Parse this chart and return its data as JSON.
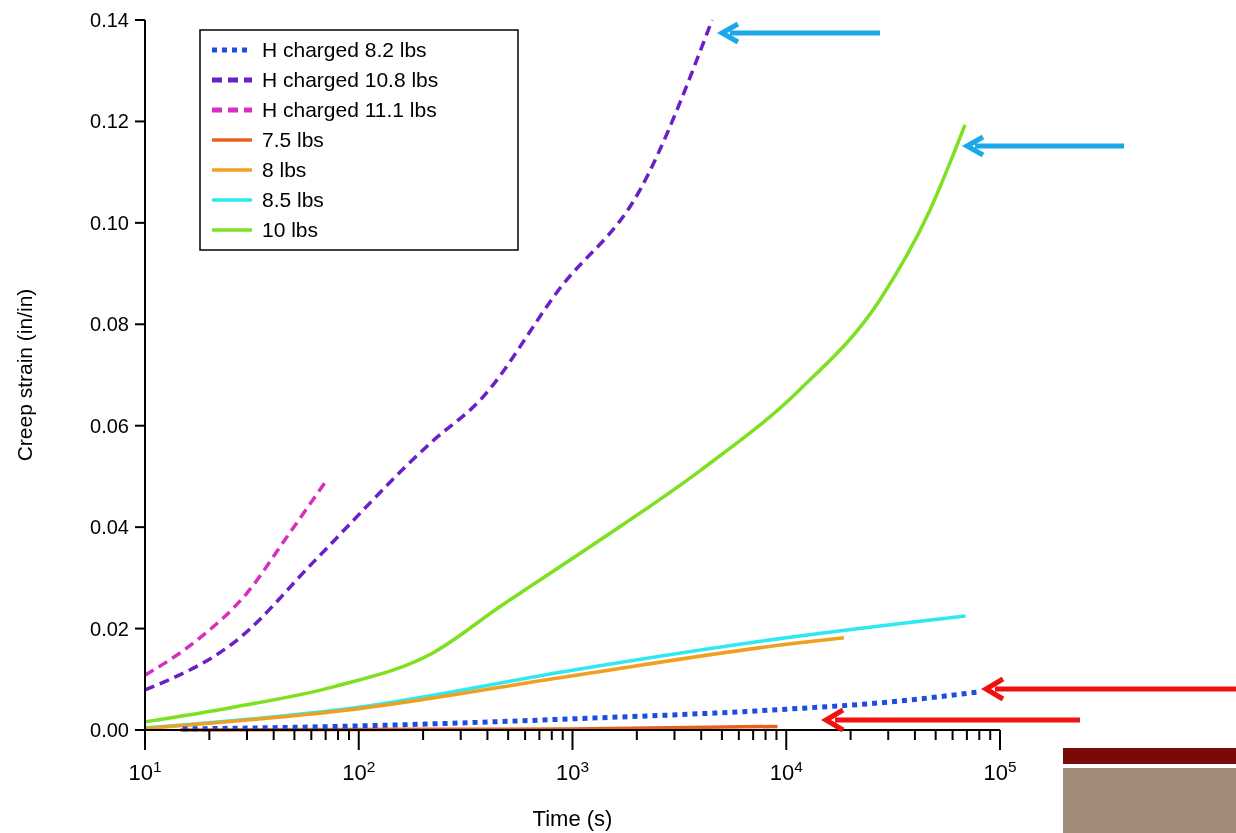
{
  "chart_data": {
    "type": "line",
    "xlabel": "Time (s)",
    "ylabel": "Creep strain (in/in)",
    "log": "x",
    "xlim": [
      10,
      100000
    ],
    "ylim": [
      0,
      0.14
    ],
    "xticks": [
      {
        "value": 10,
        "label": "10$^{1}$"
      },
      {
        "value": 20,
        "label": null
      },
      {
        "value": 30,
        "label": null
      },
      {
        "value": 40,
        "label": null
      },
      {
        "value": 50,
        "label": null
      },
      {
        "value": 60,
        "label": null
      },
      {
        "value": 70,
        "label": null
      },
      {
        "value": 80,
        "label": null
      },
      {
        "value": 90,
        "label": null
      },
      {
        "value": 100,
        "label": "10$^{2}$"
      },
      {
        "value": 200,
        "label": null
      },
      {
        "value": 300,
        "label": null
      },
      {
        "value": 400,
        "label": null
      },
      {
        "value": 500,
        "label": null
      },
      {
        "value": 600,
        "label": null
      },
      {
        "value": 700,
        "label": null
      },
      {
        "value": 800,
        "label": null
      },
      {
        "value": 900,
        "label": null
      },
      {
        "value": 1000,
        "label": "10$^{3}$"
      },
      {
        "value": 2000,
        "label": null
      },
      {
        "value": 3000,
        "label": null
      },
      {
        "value": 4000,
        "label": null
      },
      {
        "value": 5000,
        "label": null
      },
      {
        "value": 6000,
        "label": null
      },
      {
        "value": 7000,
        "label": null
      },
      {
        "value": 8000,
        "label": null
      },
      {
        "value": 9000,
        "label": null
      },
      {
        "value": 10000,
        "label": "10$^{4}$"
      },
      {
        "value": 20000,
        "label": null
      },
      {
        "value": 30000,
        "label": null
      },
      {
        "value": 40000,
        "label": null
      },
      {
        "value": 50000,
        "label": null
      },
      {
        "value": 60000,
        "label": null
      },
      {
        "value": 70000,
        "label": null
      },
      {
        "value": 80000,
        "label": null
      },
      {
        "value": 90000,
        "label": null
      },
      {
        "value": 100000,
        "label": "10$^{5}$"
      }
    ],
    "yticks": [
      {
        "value": 0,
        "label": "0.00"
      },
      {
        "value": 0.02,
        "label": "0.02"
      },
      {
        "value": 0.04,
        "label": "0.04"
      },
      {
        "value": 0.06,
        "label": "0.06"
      },
      {
        "value": 0.08,
        "label": "0.08"
      },
      {
        "value": 0.1,
        "label": "0.10"
      },
      {
        "value": 0.12,
        "label": "0.12"
      },
      {
        "value": 0.14,
        "label": "0.14"
      }
    ],
    "grid": false,
    "legend": "top left",
    "marker": "none",
    "series": [
      {
        "name": "H charged 8.2 lbs",
        "color": "#1a4de0",
        "line_style": "dotted",
        "x": [
          15,
          100,
          1000,
          10000,
          30000,
          79400
        ],
        "values": [
          0.0002,
          0.0008,
          0.0022,
          0.0041,
          0.0055,
          0.0075
        ]
      },
      {
        "name": "H charged 10.8 lbs",
        "color": "#6a1fc9",
        "line_style": "dashed",
        "x": [
          10,
          28,
          61,
          222,
          369,
          870,
          2070,
          4500
        ],
        "values": [
          0.0079,
          0.0183,
          0.033,
          0.057,
          0.065,
          0.087,
          0.1065,
          0.14
        ]
      },
      {
        "name": "H charged 11.1 lbs",
        "color": "#d62fc0",
        "line_style": "dashed",
        "x": [
          10,
          17.5,
          30,
          46,
          70
        ],
        "values": [
          0.0108,
          0.0177,
          0.027,
          0.038,
          0.049
        ]
      },
      {
        "name": "7.5 lbs",
        "color": "#e8601c",
        "line_style": "solid",
        "x": [
          14.6,
          100,
          1000,
          9100
        ],
        "values": [
          0,
          0.0001,
          0.0002,
          0.0007
        ]
      },
      {
        "name": "8 lbs",
        "color": "#f0a020",
        "line_style": "solid",
        "x": [
          10,
          100,
          1000,
          10000,
          18600
        ],
        "values": [
          0.0003,
          0.0042,
          0.0107,
          0.0169,
          0.0182
        ]
      },
      {
        "name": "8.5 lbs",
        "color": "#30e8f0",
        "line_style": "solid",
        "x": [
          10,
          100,
          1000,
          10000,
          69000
        ],
        "values": [
          0.0004,
          0.0045,
          0.0118,
          0.0182,
          0.0225
        ]
      },
      {
        "name": "10 lbs",
        "color": "#7ee020",
        "line_style": "solid",
        "x": [
          10,
          25.9,
          76,
          222,
          457,
          1350,
          4000,
          11500,
          27400,
          47000,
          68600
        ],
        "values": [
          0.0016,
          0.0045,
          0.0085,
          0.0152,
          0.0243,
          0.0375,
          0.0513,
          0.067,
          0.0848,
          0.1025,
          0.1193
        ]
      }
    ]
  }
}
